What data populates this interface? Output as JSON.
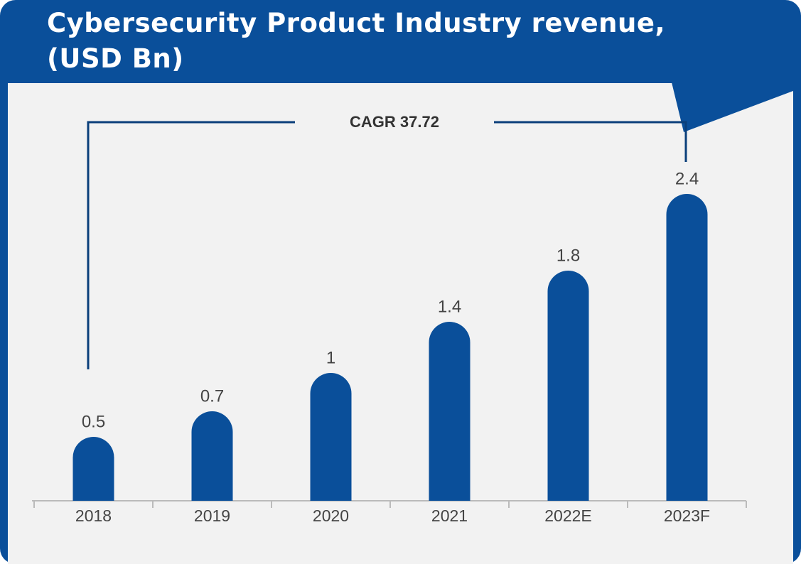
{
  "chart_data": {
    "type": "bar",
    "title": "Cybersecurity Product Industry revenue,\n(USD Bn)",
    "annotation": "CAGR 37.72",
    "categories": [
      "2018",
      "2019",
      "2020",
      "2021",
      "2022E",
      "2023F"
    ],
    "values": [
      0.5,
      0.7,
      1,
      1.4,
      1.8,
      2.4
    ],
    "color": "#0a4f9a"
  }
}
